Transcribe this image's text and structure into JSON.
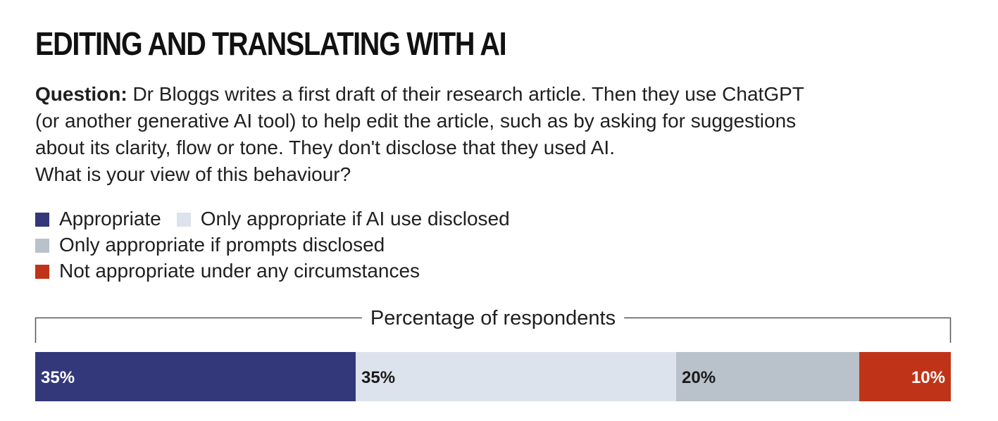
{
  "chart_data": {
    "type": "bar",
    "orientation": "horizontal-stacked",
    "title": "EDITING AND TRANSLATING WITH AI",
    "question_label": "Question:",
    "question_lines": [
      "Dr Bloggs writes a first draft of their research article. Then they use ChatGPT",
      "(or another generative AI tool) to help edit the article, such as by asking for suggestions",
      "about its clarity, flow or tone. They don't disclose that they used AI.",
      "What is your view of this behaviour?"
    ],
    "xlabel": "Percentage of respondents",
    "unit": "%",
    "xlim": [
      0,
      100
    ],
    "grid": false,
    "legend_position": "top-left",
    "series": [
      {
        "name": "Appropriate",
        "values": [
          35
        ],
        "color": "#33387a",
        "label_color": "#ffffff",
        "label": "35%"
      },
      {
        "name": "Only appropriate if AI use disclosed",
        "values": [
          35
        ],
        "color": "#dde3ec",
        "label_color": "#1a1a1a",
        "label": "35%"
      },
      {
        "name": "Only appropriate if prompts disclosed",
        "values": [
          20
        ],
        "color": "#b9c1ca",
        "label_color": "#1a1a1a",
        "label": "20%"
      },
      {
        "name": "Not appropriate under any circumstances",
        "values": [
          10
        ],
        "color": "#bf3418",
        "label_color": "#ffffff",
        "label": "10%"
      }
    ]
  }
}
